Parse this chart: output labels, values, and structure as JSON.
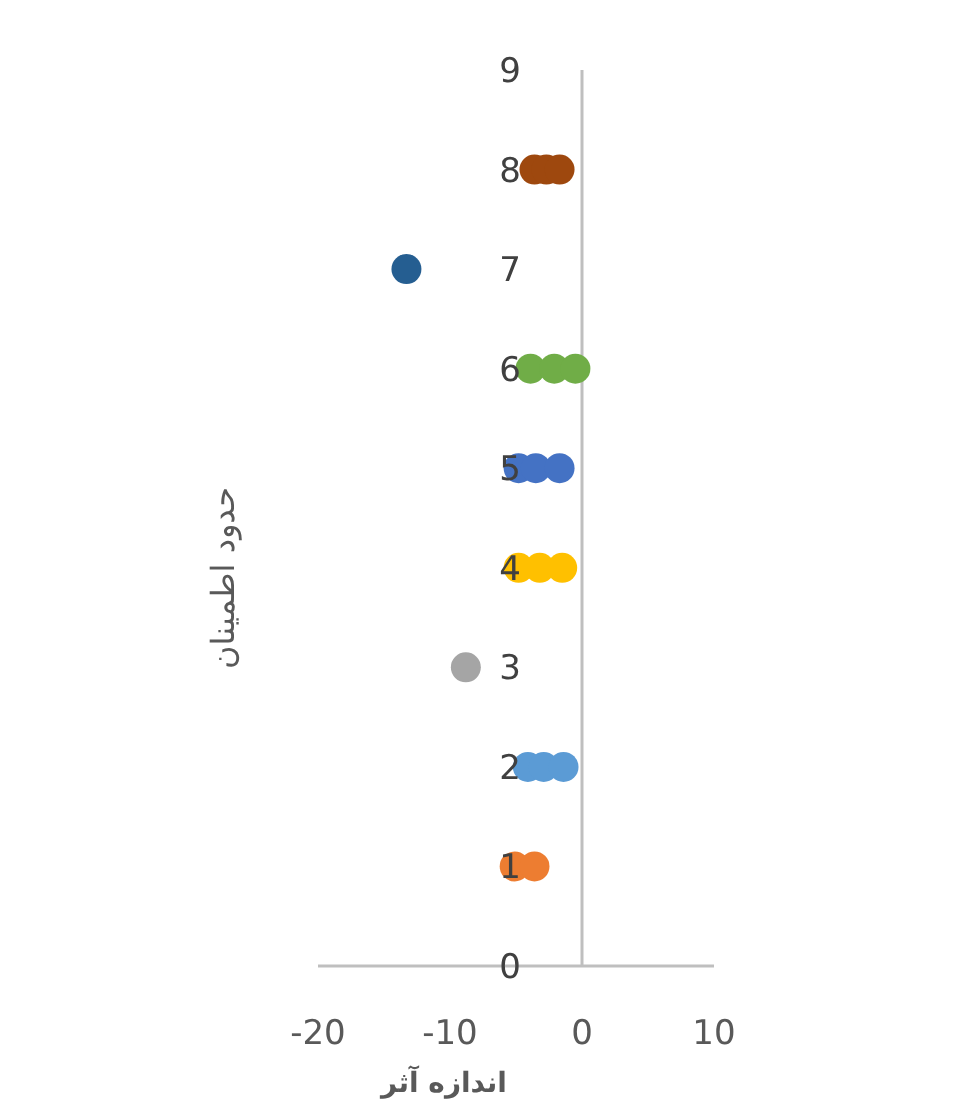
{
  "chart_data": {
    "type": "scatter",
    "xlabel": "اندازه آثر",
    "ylabel": "حدود اطمینان",
    "marker": "circle",
    "xlim": [
      -20,
      10
    ],
    "xticks": [
      -20,
      -10,
      0,
      10
    ],
    "ylim": [
      0,
      9
    ],
    "yticks": [
      0,
      1,
      2,
      3,
      4,
      5,
      6,
      7,
      8,
      9
    ],
    "series": [
      {
        "color": "#ed7d31",
        "x": [
          -5.1,
          -3.6
        ],
        "values": [
          1,
          1
        ]
      },
      {
        "color": "#5b9bd5",
        "x": [
          -4.1,
          -2.9,
          -1.4
        ],
        "values": [
          2,
          2,
          2
        ]
      },
      {
        "color": "#a5a5a5",
        "x": [
          -8.8
        ],
        "values": [
          3
        ]
      },
      {
        "color": "#ffc000",
        "x": [
          -4.8,
          -3.2,
          -1.5
        ],
        "values": [
          4,
          4,
          4
        ]
      },
      {
        "color": "#4472c4",
        "x": [
          -4.8,
          -3.5,
          -1.7
        ],
        "values": [
          5,
          5,
          5
        ]
      },
      {
        "color": "#70ad47",
        "x": [
          -3.9,
          -2.1,
          -0.5
        ],
        "values": [
          6,
          6,
          6
        ]
      },
      {
        "color": "#255e91",
        "x": [
          -13.3
        ],
        "values": [
          7
        ]
      },
      {
        "color": "#9e480e",
        "x": [
          -3.6,
          -2.7,
          -1.7
        ],
        "values": [
          8,
          8,
          8
        ]
      }
    ]
  }
}
